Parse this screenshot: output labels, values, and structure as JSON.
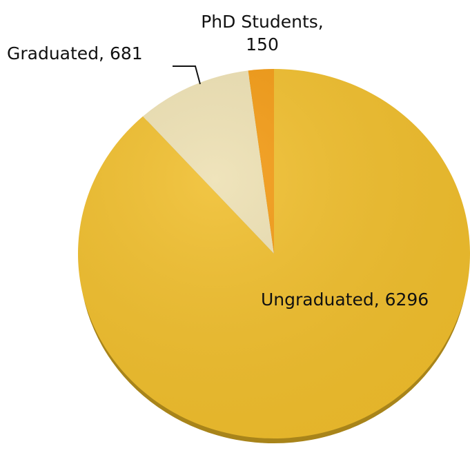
{
  "chart_data": {
    "type": "pie",
    "categories": [
      "Ungraduated",
      "Graduated",
      "PhD Students"
    ],
    "values": [
      6296,
      681,
      150
    ],
    "value_labels": [
      "Ungraduated, 6296",
      "Graduated, 681",
      "PhD Students, 150"
    ],
    "colors": [
      "#f0be2c",
      "#ede0b2",
      "#f39a12"
    ]
  }
}
